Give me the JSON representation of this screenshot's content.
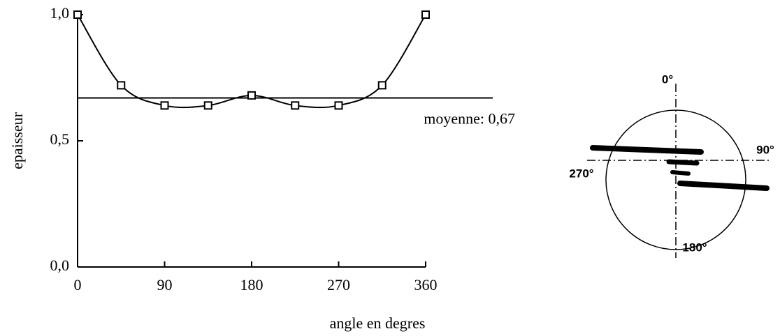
{
  "chart_data": {
    "type": "line",
    "x": [
      0,
      45,
      90,
      135,
      180,
      225,
      270,
      315,
      360
    ],
    "series": [
      {
        "color": "#000000",
        "values": [
          1.0,
          0.72,
          0.64,
          0.64,
          0.68,
          0.64,
          0.64,
          0.72,
          1.0
        ]
      }
    ],
    "xlim": [
      0,
      360
    ],
    "xticks": [
      0,
      90,
      180,
      270,
      360
    ],
    "ylim": [
      0,
      1.0
    ],
    "yticks": [
      {
        "value": 0,
        "label": "0,0"
      },
      {
        "value": 0.5,
        "label": "0,5"
      },
      {
        "value": 1.0,
        "label": "1,0"
      }
    ],
    "y_label": "epaisseur",
    "x_label": "angle en degres",
    "reference_line": {
      "value": 0.67,
      "label": "moyenne: 0,67"
    }
  },
  "inset": {
    "labels": [
      "0°",
      "90°",
      "180°",
      "270°"
    ]
  }
}
